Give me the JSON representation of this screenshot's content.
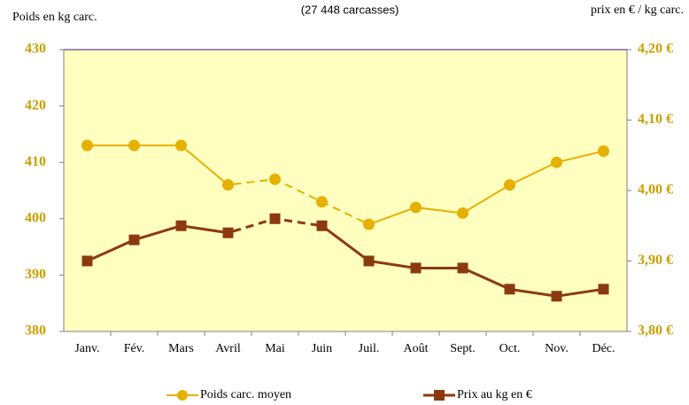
{
  "chart_data": {
    "type": "line",
    "title": "(27 448 carcasses)",
    "y_label": "Poids en kg carc.",
    "y2_label": "prix en € / kg carc.",
    "categories": [
      "Janv.",
      "Fév.",
      "Mars",
      "Avril",
      "Mai",
      "Juin",
      "Juil.",
      "Août",
      "Sept.",
      "Oct.",
      "Nov.",
      "Déc."
    ],
    "series": [
      {
        "name": "Poids carc. moyen",
        "color": "#e6b000",
        "marker": "circle",
        "dash_range": [
          3,
          6
        ],
        "values": [
          413,
          413,
          413,
          406,
          407,
          403,
          399,
          402,
          401,
          406,
          410,
          412
        ]
      },
      {
        "name": "Prix au kg en €",
        "color": "#8b3a0f",
        "marker": "square",
        "axis": "y2",
        "dash_range": [
          3,
          5
        ],
        "values": [
          3.9,
          3.93,
          3.95,
          3.94,
          3.96,
          3.95,
          3.9,
          3.89,
          3.89,
          3.86,
          3.85,
          3.86
        ]
      }
    ],
    "ylim": [
      380,
      430
    ],
    "yticks": [
      380,
      390,
      400,
      410,
      420,
      430
    ],
    "y2lim": [
      3.8,
      4.2
    ],
    "y2ticks": [
      {
        "value": 3.8,
        "label": "3,80 €"
      },
      {
        "value": 3.9,
        "label": "3,90 €"
      },
      {
        "value": 4.0,
        "label": "4,00 €"
      },
      {
        "value": 4.1,
        "label": "4,10 €"
      },
      {
        "value": 4.2,
        "label": "4,20 €"
      }
    ],
    "plot_background": "#ffffc0",
    "legend": "bottom"
  }
}
